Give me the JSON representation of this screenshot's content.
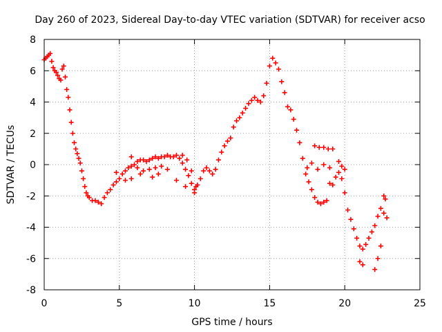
{
  "chart_data": {
    "type": "scatter",
    "title": "Day 260 of 2023, Sidereal Day-to-day VTEC variation (SDTVAR) for receiver acso",
    "xlabel": "GPS time / hours",
    "ylabel": "SDTVAR / TECUs",
    "xlim": [
      0,
      25
    ],
    "ylim": [
      -8,
      8
    ],
    "xticks": [
      0,
      5,
      10,
      15,
      20,
      25
    ],
    "yticks": [
      -8,
      -6,
      -4,
      -2,
      0,
      2,
      4,
      6,
      8
    ],
    "grid": true,
    "marker": "+",
    "series": [
      {
        "name": "SDTVAR",
        "color": "#ff0000",
        "points": [
          [
            0.0,
            6.7
          ],
          [
            0.1,
            6.8
          ],
          [
            0.2,
            6.9
          ],
          [
            0.3,
            7.0
          ],
          [
            0.4,
            7.1
          ],
          [
            0.5,
            6.6
          ],
          [
            0.6,
            6.2
          ],
          [
            0.7,
            6.0
          ],
          [
            0.8,
            5.9
          ],
          [
            0.9,
            5.7
          ],
          [
            1.0,
            5.5
          ],
          [
            1.1,
            5.4
          ],
          [
            1.2,
            6.1
          ],
          [
            1.3,
            6.3
          ],
          [
            1.4,
            5.6
          ],
          [
            1.5,
            4.8
          ],
          [
            1.6,
            4.3
          ],
          [
            1.7,
            3.5
          ],
          [
            1.8,
            2.7
          ],
          [
            1.9,
            2.0
          ],
          [
            2.0,
            1.4
          ],
          [
            2.1,
            1.0
          ],
          [
            2.2,
            0.7
          ],
          [
            2.3,
            0.4
          ],
          [
            2.4,
            0.1
          ],
          [
            2.5,
            -0.4
          ],
          [
            2.6,
            -0.9
          ],
          [
            2.7,
            -1.4
          ],
          [
            2.8,
            -1.8
          ],
          [
            2.9,
            -2.0
          ],
          [
            3.0,
            -2.1
          ],
          [
            3.2,
            -2.3
          ],
          [
            3.4,
            -2.3
          ],
          [
            3.6,
            -2.4
          ],
          [
            3.8,
            -2.5
          ],
          [
            4.0,
            -2.1
          ],
          [
            4.2,
            -1.8
          ],
          [
            4.4,
            -1.6
          ],
          [
            4.6,
            -1.3
          ],
          [
            4.8,
            -1.1
          ],
          [
            5.0,
            -0.9
          ],
          [
            5.2,
            -0.6
          ],
          [
            5.4,
            -0.4
          ],
          [
            5.6,
            -0.2
          ],
          [
            5.8,
            -0.1
          ],
          [
            6.0,
            0.0
          ],
          [
            6.2,
            0.2
          ],
          [
            6.4,
            0.3
          ],
          [
            6.6,
            0.3
          ],
          [
            6.8,
            0.2
          ],
          [
            7.0,
            0.3
          ],
          [
            7.2,
            0.4
          ],
          [
            7.4,
            0.5
          ],
          [
            7.6,
            0.4
          ],
          [
            7.8,
            0.5
          ],
          [
            8.0,
            0.5
          ],
          [
            8.2,
            0.6
          ],
          [
            8.4,
            0.5
          ],
          [
            8.6,
            0.5
          ],
          [
            8.8,
            0.6
          ],
          [
            9.0,
            0.4
          ],
          [
            9.2,
            0.1
          ],
          [
            9.4,
            -0.3
          ],
          [
            9.6,
            -0.7
          ],
          [
            9.8,
            -1.2
          ],
          [
            10.0,
            -1.6
          ],
          [
            10.2,
            -1.3
          ],
          [
            10.4,
            -0.9
          ],
          [
            10.6,
            -0.4
          ],
          [
            10.8,
            -0.2
          ],
          [
            11.0,
            -0.4
          ],
          [
            11.2,
            -0.6
          ],
          [
            11.4,
            -0.3
          ],
          [
            11.6,
            0.3
          ],
          [
            11.8,
            0.8
          ],
          [
            12.0,
            1.2
          ],
          [
            12.2,
            1.5
          ],
          [
            12.4,
            1.7
          ],
          [
            12.6,
            2.4
          ],
          [
            12.8,
            2.8
          ],
          [
            13.0,
            3.0
          ],
          [
            13.2,
            3.3
          ],
          [
            13.4,
            3.6
          ],
          [
            13.6,
            3.9
          ],
          [
            13.8,
            4.1
          ],
          [
            14.0,
            4.3
          ],
          [
            14.2,
            4.1
          ],
          [
            14.4,
            4.0
          ],
          [
            14.6,
            4.4
          ],
          [
            14.8,
            5.2
          ],
          [
            15.0,
            6.3
          ],
          [
            15.2,
            6.8
          ],
          [
            15.4,
            6.5
          ],
          [
            15.6,
            6.1
          ],
          [
            15.8,
            5.3
          ],
          [
            16.0,
            4.6
          ],
          [
            16.2,
            3.7
          ],
          [
            16.4,
            3.5
          ],
          [
            16.6,
            2.9
          ],
          [
            16.8,
            2.2
          ],
          [
            17.0,
            1.4
          ],
          [
            17.2,
            0.4
          ],
          [
            17.4,
            -0.6
          ],
          [
            17.6,
            -1.1
          ],
          [
            17.8,
            -1.6
          ],
          [
            18.0,
            -2.1
          ],
          [
            18.2,
            -2.4
          ],
          [
            18.4,
            -2.5
          ],
          [
            18.6,
            -2.4
          ],
          [
            18.8,
            -2.3
          ],
          [
            19.0,
            -1.2
          ],
          [
            19.2,
            -1.3
          ],
          [
            19.4,
            -0.8
          ],
          [
            19.6,
            -0.5
          ],
          [
            19.8,
            -0.9
          ],
          [
            20.0,
            -1.8
          ],
          [
            20.2,
            -2.9
          ],
          [
            20.4,
            -3.5
          ],
          [
            20.6,
            -4.1
          ],
          [
            20.8,
            -4.7
          ],
          [
            21.0,
            -5.2
          ],
          [
            21.2,
            -5.4
          ],
          [
            21.4,
            -5.1
          ],
          [
            21.6,
            -4.7
          ],
          [
            21.8,
            -4.3
          ],
          [
            22.0,
            -3.9
          ],
          [
            22.2,
            -3.3
          ],
          [
            22.4,
            -2.8
          ],
          [
            22.6,
            -3.1
          ],
          [
            22.8,
            -3.4
          ],
          [
            18.0,
            1.2
          ],
          [
            18.3,
            1.1
          ],
          [
            18.6,
            1.1
          ],
          [
            18.9,
            1.0
          ],
          [
            19.2,
            1.0
          ],
          [
            19.6,
            0.2
          ],
          [
            19.8,
            -0.1
          ],
          [
            20.0,
            -0.3
          ],
          [
            22.0,
            -6.7
          ],
          [
            22.2,
            -6.0
          ],
          [
            22.4,
            -5.2
          ],
          [
            22.6,
            -2.0
          ],
          [
            22.7,
            -2.2
          ],
          [
            21.0,
            -6.2
          ],
          [
            21.2,
            -6.4
          ],
          [
            17.5,
            -0.2
          ],
          [
            17.8,
            0.1
          ],
          [
            18.2,
            -0.3
          ],
          [
            18.6,
            0.0
          ],
          [
            19.0,
            -0.2
          ],
          [
            9.2,
            0.6
          ],
          [
            9.5,
            0.3
          ],
          [
            9.8,
            -0.4
          ],
          [
            10.1,
            -1.4
          ],
          [
            5.8,
            0.5
          ],
          [
            6.2,
            -0.2
          ],
          [
            6.6,
            -0.4
          ],
          [
            7.0,
            -0.3
          ],
          [
            7.4,
            -0.2
          ],
          [
            7.8,
            -0.1
          ],
          [
            4.8,
            -0.5
          ],
          [
            5.4,
            -1.0
          ],
          [
            5.8,
            -0.9
          ],
          [
            6.4,
            -0.6
          ],
          [
            7.2,
            -0.8
          ],
          [
            7.6,
            -0.6
          ],
          [
            8.2,
            -0.3
          ],
          [
            8.8,
            -1.0
          ],
          [
            9.4,
            -1.4
          ],
          [
            10.0,
            -1.8
          ]
        ]
      }
    ]
  }
}
